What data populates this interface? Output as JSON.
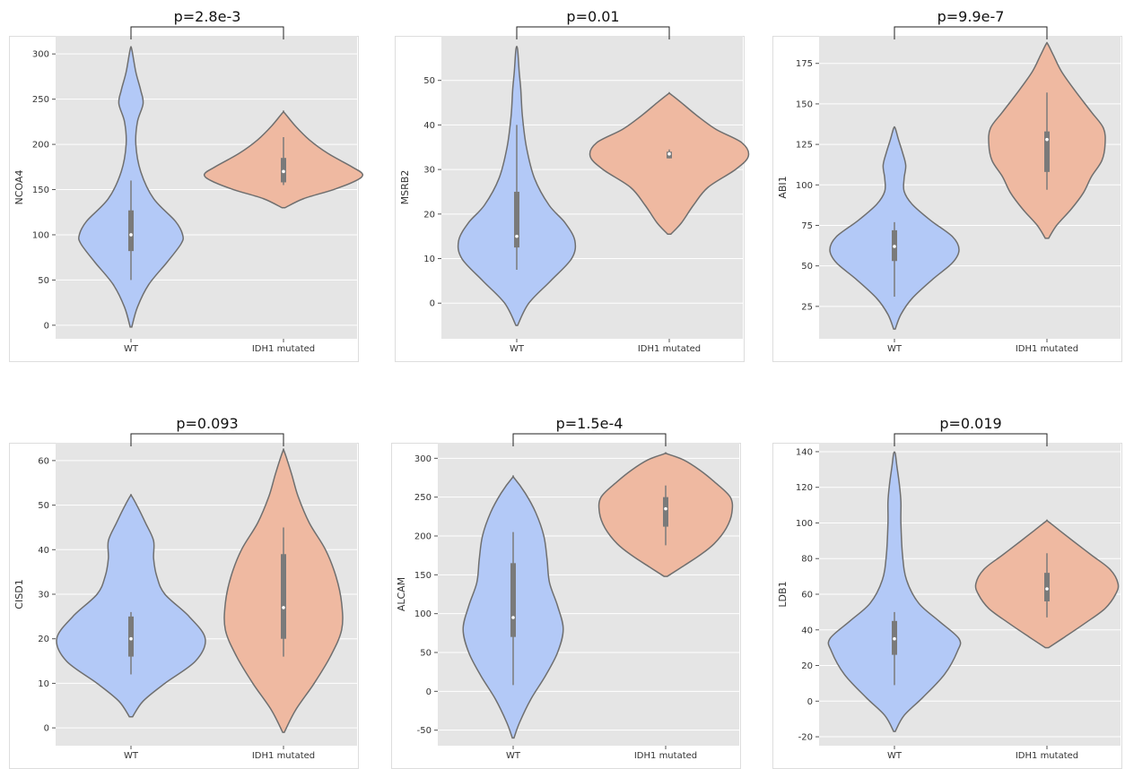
{
  "colors": {
    "wt": "#b3c9f7",
    "mut": "#efb9a1",
    "bg": "#e5e5e5",
    "grid": "#ffffff",
    "outline": "#6f6f6f",
    "box": "#7a7a7a"
  },
  "chart_data": [
    {
      "type": "violin",
      "ylabel": "NCOA4",
      "pvalue": "p=2.8e-3",
      "categories": [
        "WT",
        "IDH1 mutated"
      ],
      "yticks": [
        0,
        50,
        100,
        150,
        200,
        250,
        300
      ],
      "ylim": [
        -15,
        320
      ],
      "series": [
        {
          "min": -2,
          "max": 305,
          "q1": 82,
          "median": 100,
          "q3": 127,
          "whisker_low": 50,
          "whisker_high": 160,
          "density": [
            [
              -2,
              0.01
            ],
            [
              20,
              0.08
            ],
            [
              45,
              0.22
            ],
            [
              70,
              0.45
            ],
            [
              90,
              0.62
            ],
            [
              100,
              0.64
            ],
            [
              115,
              0.55
            ],
            [
              140,
              0.28
            ],
            [
              170,
              0.12
            ],
            [
              200,
              0.06
            ],
            [
              225,
              0.08
            ],
            [
              245,
              0.15
            ],
            [
              260,
              0.12
            ],
            [
              280,
              0.06
            ],
            [
              305,
              0.01
            ]
          ]
        },
        {
          "min": 130,
          "max": 235,
          "q1": 158,
          "median": 170,
          "q3": 185,
          "whisker_low": 155,
          "whisker_high": 208,
          "density": [
            [
              130,
              0.02
            ],
            [
              140,
              0.25
            ],
            [
              150,
              0.62
            ],
            [
              160,
              0.9
            ],
            [
              167,
              0.98
            ],
            [
              175,
              0.85
            ],
            [
              190,
              0.55
            ],
            [
              205,
              0.32
            ],
            [
              220,
              0.15
            ],
            [
              235,
              0.01
            ]
          ]
        }
      ]
    },
    {
      "type": "violin",
      "ylabel": "MSRB2",
      "pvalue": "p=0.01",
      "categories": [
        "WT",
        "IDH1 mutated"
      ],
      "yticks": [
        0,
        10,
        20,
        30,
        40,
        50
      ],
      "ylim": [
        -8,
        60
      ],
      "series": [
        {
          "min": -5,
          "max": 57,
          "q1": 12.5,
          "median": 15,
          "q3": 25,
          "whisker_low": 7.5,
          "whisker_high": 40,
          "density": [
            [
              -5,
              0.01
            ],
            [
              0,
              0.15
            ],
            [
              5,
              0.42
            ],
            [
              10,
              0.68
            ],
            [
              14,
              0.72
            ],
            [
              18,
              0.6
            ],
            [
              22,
              0.4
            ],
            [
              28,
              0.22
            ],
            [
              35,
              0.12
            ],
            [
              42,
              0.07
            ],
            [
              48,
              0.05
            ],
            [
              52,
              0.03
            ],
            [
              57,
              0.01
            ]
          ]
        },
        {
          "min": 15.5,
          "max": 47,
          "q1": 32.5,
          "median": 33.5,
          "q3": 34,
          "whisker_low": 32.5,
          "whisker_high": 34.5,
          "density": [
            [
              15.5,
              0.02
            ],
            [
              18,
              0.15
            ],
            [
              22,
              0.3
            ],
            [
              26,
              0.48
            ],
            [
              30,
              0.82
            ],
            [
              33,
              0.98
            ],
            [
              36,
              0.9
            ],
            [
              39,
              0.58
            ],
            [
              42,
              0.35
            ],
            [
              45,
              0.15
            ],
            [
              47,
              0.01
            ]
          ]
        }
      ]
    },
    {
      "type": "violin",
      "ylabel": "ABI1",
      "pvalue": "p=9.9e-7",
      "categories": [
        "WT",
        "IDH1 mutated"
      ],
      "yticks": [
        25,
        50,
        75,
        100,
        125,
        150,
        175
      ],
      "ylim": [
        5,
        192
      ],
      "series": [
        {
          "min": 11,
          "max": 135,
          "q1": 53,
          "median": 62,
          "q3": 72,
          "whisker_low": 31,
          "whisker_high": 77,
          "density": [
            [
              11,
              0.01
            ],
            [
              20,
              0.08
            ],
            [
              30,
              0.22
            ],
            [
              42,
              0.48
            ],
            [
              52,
              0.72
            ],
            [
              60,
              0.8
            ],
            [
              68,
              0.72
            ],
            [
              78,
              0.45
            ],
            [
              88,
              0.22
            ],
            [
              96,
              0.12
            ],
            [
              104,
              0.12
            ],
            [
              112,
              0.14
            ],
            [
              120,
              0.1
            ],
            [
              128,
              0.05
            ],
            [
              135,
              0.01
            ]
          ]
        },
        {
          "min": 67,
          "max": 187,
          "q1": 108,
          "median": 128,
          "q3": 133,
          "whisker_low": 97,
          "whisker_high": 157,
          "density": [
            [
              67,
              0.02
            ],
            [
              75,
              0.12
            ],
            [
              85,
              0.3
            ],
            [
              95,
              0.45
            ],
            [
              105,
              0.55
            ],
            [
              115,
              0.68
            ],
            [
              125,
              0.72
            ],
            [
              135,
              0.7
            ],
            [
              145,
              0.55
            ],
            [
              158,
              0.35
            ],
            [
              170,
              0.18
            ],
            [
              180,
              0.08
            ],
            [
              187,
              0.01
            ]
          ]
        }
      ]
    },
    {
      "type": "violin",
      "ylabel": "CISD1",
      "pvalue": "p=0.093",
      "categories": [
        "WT",
        "IDH1 mutated"
      ],
      "yticks": [
        0,
        10,
        20,
        30,
        40,
        50,
        60
      ],
      "ylim": [
        -4,
        64
      ],
      "series": [
        {
          "min": 2.5,
          "max": 52,
          "q1": 16,
          "median": 20,
          "q3": 25,
          "whisker_low": 12,
          "whisker_high": 26,
          "density": [
            [
              2.5,
              0.02
            ],
            [
              6,
              0.15
            ],
            [
              10,
              0.42
            ],
            [
              15,
              0.8
            ],
            [
              20,
              0.92
            ],
            [
              25,
              0.72
            ],
            [
              30,
              0.42
            ],
            [
              34,
              0.32
            ],
            [
              38,
              0.28
            ],
            [
              42,
              0.28
            ],
            [
              46,
              0.18
            ],
            [
              49,
              0.1
            ],
            [
              52,
              0.01
            ]
          ]
        },
        {
          "min": -1,
          "max": 62,
          "q1": 20,
          "median": 27,
          "q3": 39,
          "whisker_low": 16,
          "whisker_high": 45,
          "density": [
            [
              -1,
              0.01
            ],
            [
              4,
              0.15
            ],
            [
              10,
              0.38
            ],
            [
              16,
              0.58
            ],
            [
              22,
              0.72
            ],
            [
              28,
              0.72
            ],
            [
              34,
              0.65
            ],
            [
              40,
              0.52
            ],
            [
              46,
              0.32
            ],
            [
              52,
              0.18
            ],
            [
              57,
              0.1
            ],
            [
              62,
              0.01
            ]
          ]
        }
      ]
    },
    {
      "type": "violin",
      "ylabel": "ALCAM",
      "pvalue": "p=1.5e-4",
      "categories": [
        "WT",
        "IDH1 mutated"
      ],
      "yticks": [
        -50,
        0,
        50,
        100,
        150,
        200,
        250,
        300
      ],
      "ylim": [
        -70,
        320
      ],
      "series": [
        {
          "min": -60,
          "max": 275,
          "q1": 70,
          "median": 95,
          "q3": 165,
          "whisker_low": 8,
          "whisker_high": 205,
          "density": [
            [
              -60,
              0.01
            ],
            [
              -40,
              0.08
            ],
            [
              -10,
              0.22
            ],
            [
              20,
              0.4
            ],
            [
              50,
              0.55
            ],
            [
              80,
              0.62
            ],
            [
              110,
              0.55
            ],
            [
              140,
              0.45
            ],
            [
              170,
              0.42
            ],
            [
              200,
              0.38
            ],
            [
              230,
              0.28
            ],
            [
              255,
              0.15
            ],
            [
              275,
              0.01
            ]
          ]
        },
        {
          "min": 148,
          "max": 306,
          "q1": 212,
          "median": 235,
          "q3": 250,
          "whisker_low": 188,
          "whisker_high": 265,
          "density": [
            [
              148,
              0.02
            ],
            [
              160,
              0.2
            ],
            [
              175,
              0.42
            ],
            [
              190,
              0.6
            ],
            [
              210,
              0.75
            ],
            [
              230,
              0.82
            ],
            [
              250,
              0.8
            ],
            [
              270,
              0.6
            ],
            [
              285,
              0.42
            ],
            [
              298,
              0.22
            ],
            [
              306,
              0.01
            ]
          ]
        }
      ]
    },
    {
      "type": "violin",
      "ylabel": "LDB1",
      "pvalue": "p=0.019",
      "categories": [
        "WT",
        "IDH1 mutated"
      ],
      "yticks": [
        -20,
        0,
        20,
        40,
        60,
        80,
        100,
        120,
        140
      ],
      "ylim": [
        -25,
        145
      ],
      "series": [
        {
          "min": -17,
          "max": 139,
          "q1": 26,
          "median": 35,
          "q3": 45,
          "whisker_low": 9,
          "whisker_high": 50,
          "density": [
            [
              -17,
              0.01
            ],
            [
              -8,
              0.12
            ],
            [
              2,
              0.35
            ],
            [
              15,
              0.62
            ],
            [
              28,
              0.78
            ],
            [
              35,
              0.8
            ],
            [
              45,
              0.55
            ],
            [
              55,
              0.3
            ],
            [
              68,
              0.15
            ],
            [
              82,
              0.1
            ],
            [
              100,
              0.08
            ],
            [
              112,
              0.08
            ],
            [
              122,
              0.06
            ],
            [
              132,
              0.03
            ],
            [
              139,
              0.01
            ]
          ]
        },
        {
          "min": 30,
          "max": 101,
          "q1": 56,
          "median": 63,
          "q3": 72,
          "whisker_low": 47,
          "whisker_high": 83,
          "density": [
            [
              30,
              0.02
            ],
            [
              36,
              0.22
            ],
            [
              44,
              0.48
            ],
            [
              52,
              0.72
            ],
            [
              60,
              0.85
            ],
            [
              66,
              0.88
            ],
            [
              74,
              0.78
            ],
            [
              82,
              0.55
            ],
            [
              90,
              0.32
            ],
            [
              96,
              0.15
            ],
            [
              101,
              0.01
            ]
          ]
        }
      ]
    }
  ]
}
